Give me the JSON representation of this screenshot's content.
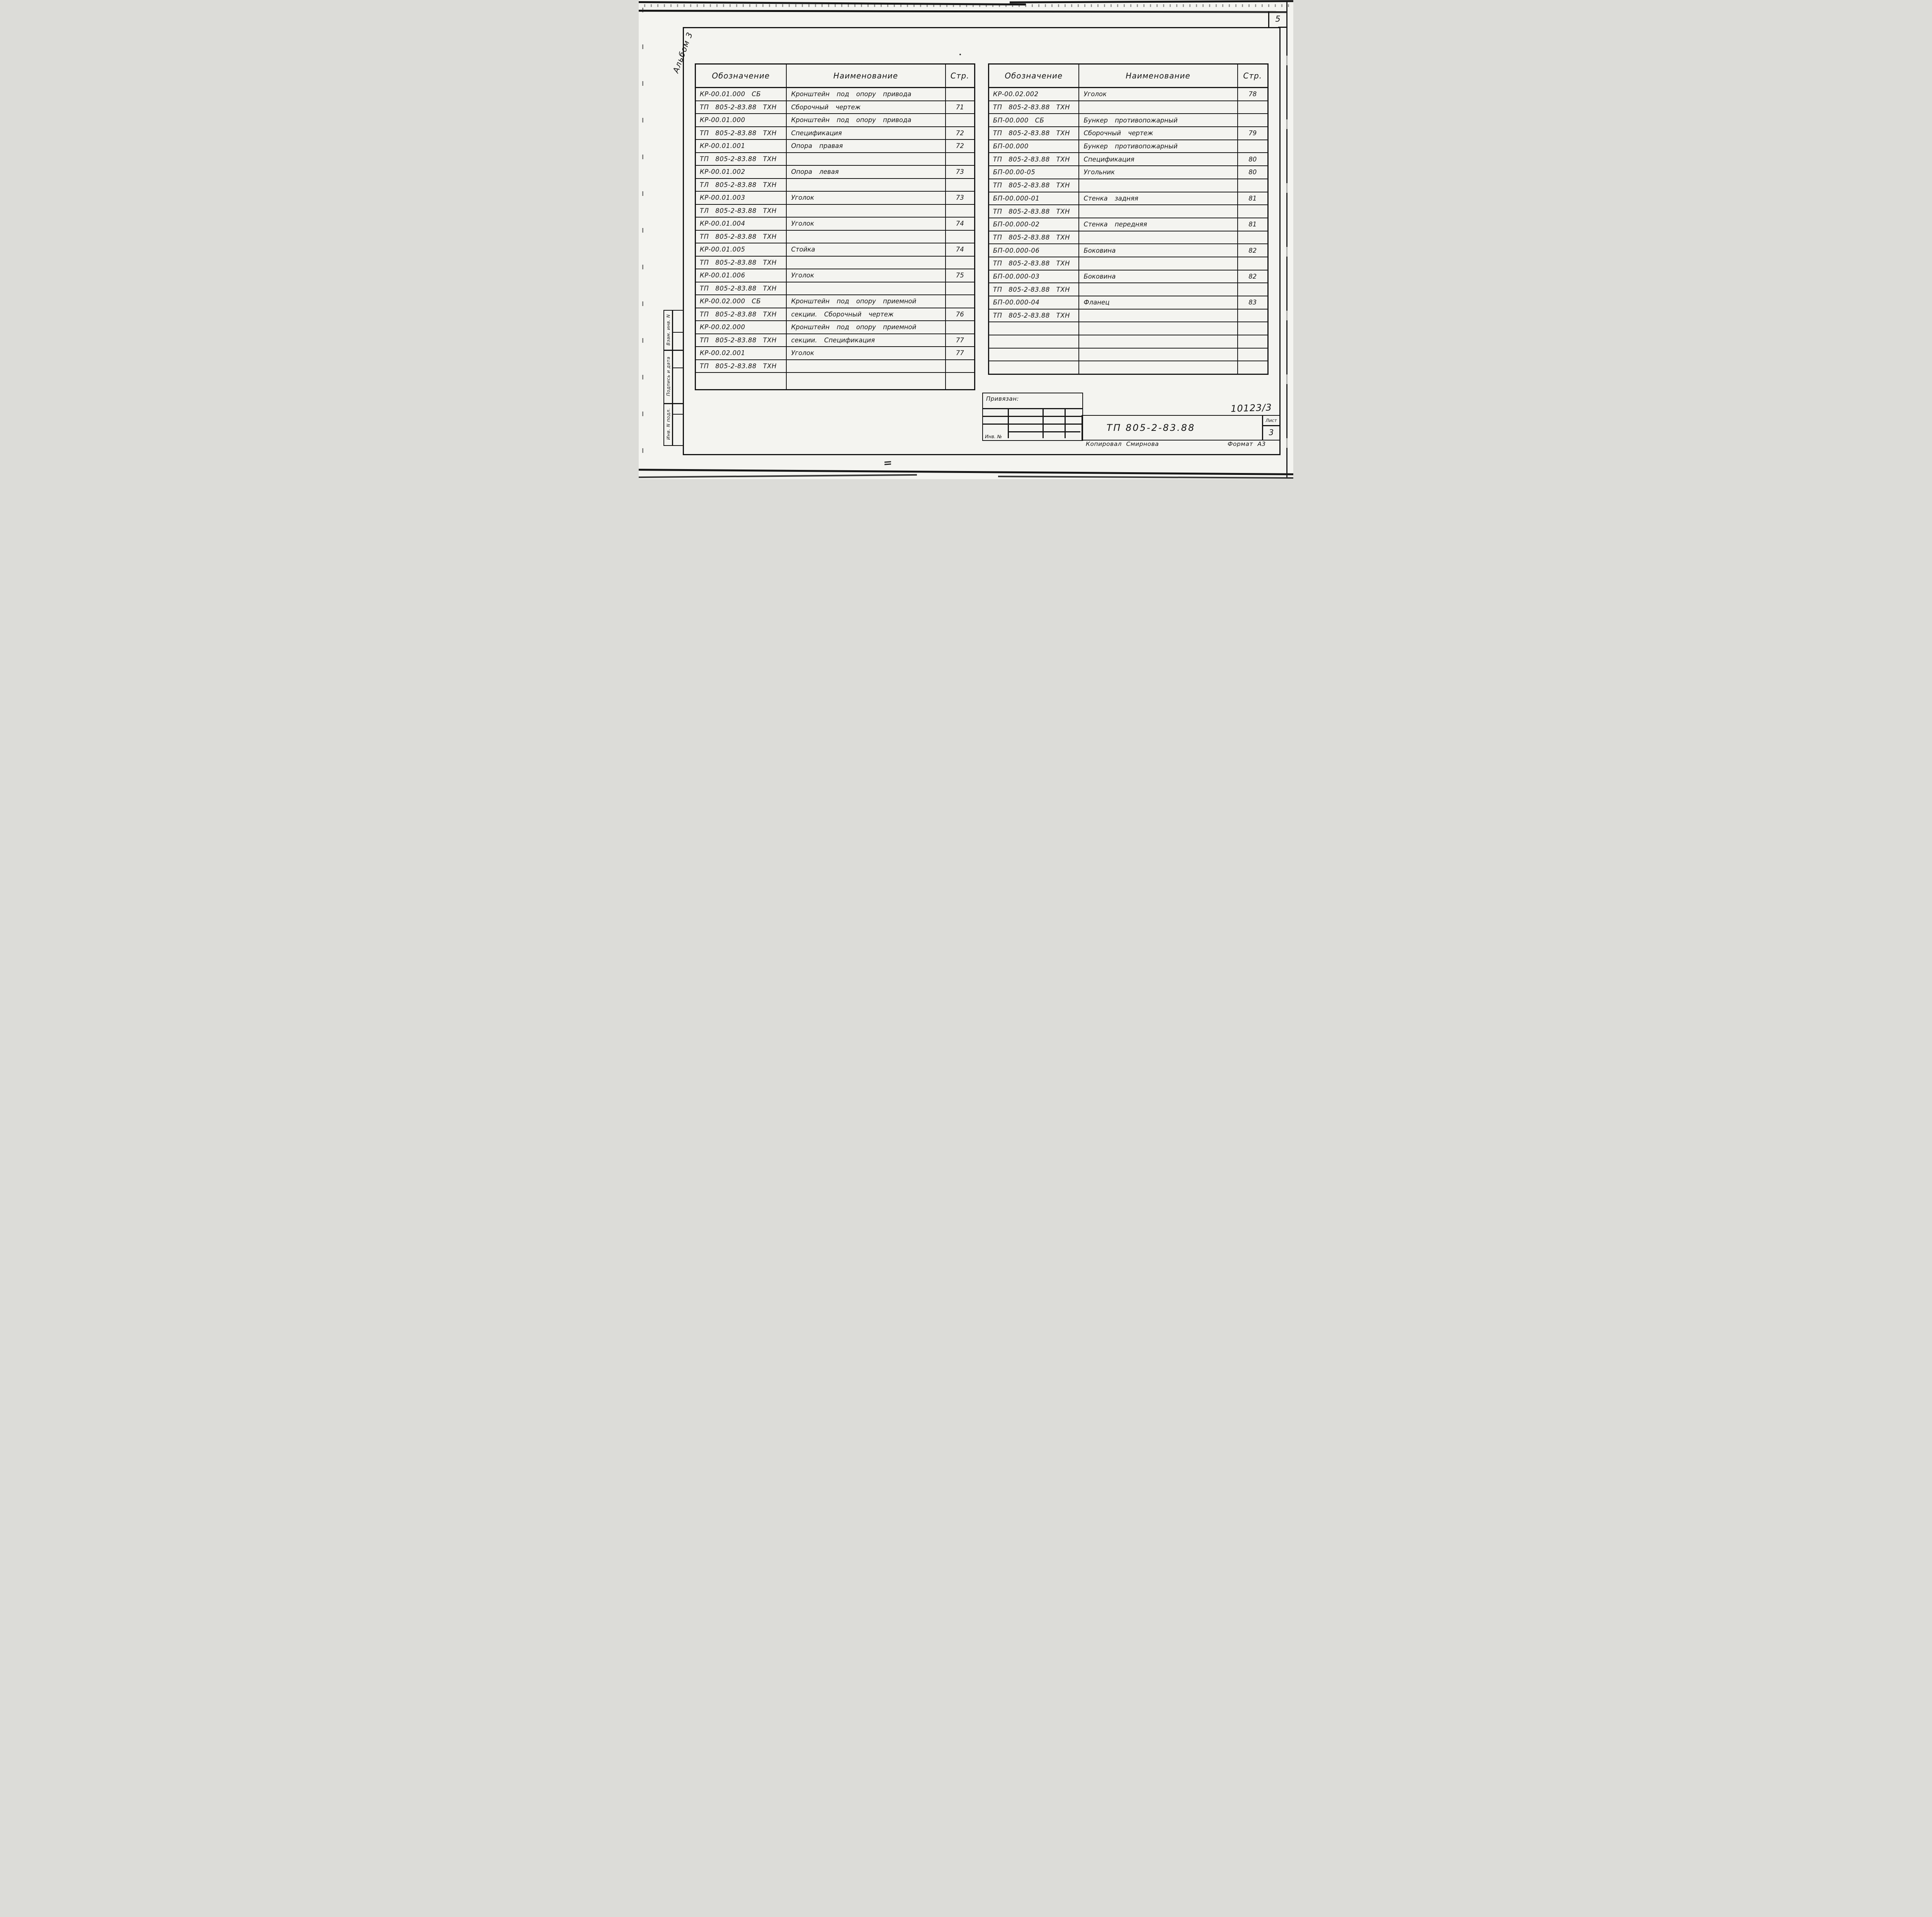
{
  "corner": {
    "sheet_number": "5"
  },
  "album": {
    "label": "Альбом 3"
  },
  "sidebar": {
    "items": [
      "Взам. инв. N",
      "Подпись и дата",
      "Инв. N подл."
    ]
  },
  "titleblock": {
    "binding_label": "Привязан:",
    "inventory_label": "Инв. №",
    "doc_code": "ТП 805-2-83.88",
    "sheet_label": "Лист",
    "sheet_value": "3",
    "doc_number": "10123/3",
    "copied_by": "Копировал Смирнова",
    "format_label": "Формат А3"
  },
  "tables": {
    "headers": [
      "Обозначение",
      "Наименование",
      "Стр."
    ],
    "left": {
      "rows": [
        [
          "КР-00.01.000 СБ",
          "Кронштейн под опору привода",
          ""
        ],
        [
          "ТП 805-2-83.88 ТХН",
          "Сборочный чертеж",
          "71"
        ],
        [
          "КР-00.01.000",
          "Кронштейн под опору привода",
          ""
        ],
        [
          "ТП 805-2-83.88 ТХН",
          "Спецификация",
          "72"
        ],
        [
          "КР-00.01.001",
          "Опора правая",
          "72"
        ],
        [
          "ТП 805-2-83.88 ТХН",
          "",
          ""
        ],
        [
          "КР-00.01.002",
          "Опора левая",
          "73"
        ],
        [
          "ТЛ 805-2-83.88 ТХН",
          "",
          ""
        ],
        [
          "КР-00.01.003",
          "Уголок",
          "73"
        ],
        [
          "ТЛ 805-2-83.88 ТХН",
          "",
          ""
        ],
        [
          "КР-00.01.004",
          "Уголок",
          "74"
        ],
        [
          "ТП 805-2-83.88 ТХН",
          "",
          ""
        ],
        [
          "КР-00.01.005",
          "Стойка",
          "74"
        ],
        [
          "ТП 805-2-83.88 ТХН",
          "",
          ""
        ],
        [
          "КР-00.01.006",
          "Уголок",
          "75"
        ],
        [
          "ТП 805-2-83.88 ТХН",
          "",
          ""
        ],
        [
          "КР-00.02.000 СБ",
          "Кронштейн под опору приемной",
          ""
        ],
        [
          "ТП 805-2-83.88 ТХН",
          "секции. Сборочный чертеж",
          "76"
        ],
        [
          "КР-00.02.000",
          "Кронштейн под опору приемной",
          ""
        ],
        [
          "ТП 805-2-83.88 ТХН",
          "секции. Спецификация",
          "77"
        ],
        [
          "КР-00.02.001",
          "Уголок",
          "77"
        ],
        [
          "ТП 805-2-83.88 ТХН",
          "",
          ""
        ],
        [
          "",
          "",
          ""
        ]
      ]
    },
    "right": {
      "rows": [
        [
          "КР-00.02.002",
          "Уголок",
          "78"
        ],
        [
          "ТП 805-2-83.88 ТХН",
          "",
          ""
        ],
        [
          "БП-00.000 СБ",
          "Бункер противопожарный",
          ""
        ],
        [
          "ТП 805-2-83.88 ТХН",
          "Сборочный чертеж",
          "79"
        ],
        [
          "БП-00.000",
          "Бункер противопожарный",
          ""
        ],
        [
          "ТП 805-2-83.88 ТХН",
          "Спецификация",
          "80"
        ],
        [
          "БП-00.00-05",
          "Угольник",
          "80"
        ],
        [
          "ТП 805-2-83.88 ТХН",
          "",
          ""
        ],
        [
          "БП-00.000-01",
          "Стенка задняя",
          "81"
        ],
        [
          "ТП 805-2-83.88 ТХН",
          "",
          ""
        ],
        [
          "БП-00.000-02",
          "Стенка передняя",
          "81"
        ],
        [
          "ТП 805-2-83.88 ТХН",
          "",
          ""
        ],
        [
          "БП-00.000-06",
          "Боковина",
          "82"
        ],
        [
          "ТП 805-2-83.88 ТХН",
          "",
          ""
        ],
        [
          "БП-00.000-03",
          "Боковина",
          "82"
        ],
        [
          "ТП 805-2-83.88 ТХН",
          "",
          ""
        ],
        [
          "БП-00.000-04",
          "Фланец",
          "83"
        ],
        [
          "ТП 805-2-83.88 ТХН",
          "",
          ""
        ],
        [
          "",
          "",
          ""
        ],
        [
          "",
          "",
          ""
        ],
        [
          "",
          "",
          ""
        ],
        [
          "",
          "",
          ""
        ]
      ]
    }
  }
}
